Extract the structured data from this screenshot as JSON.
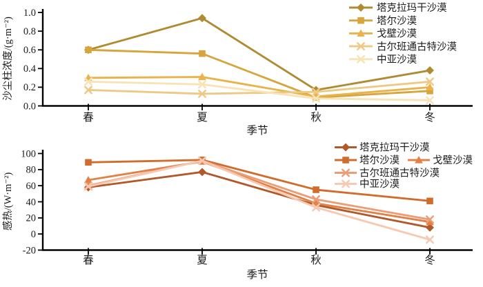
{
  "figure": {
    "background": "#ffffff",
    "text_color": "#1a1a1a",
    "axis_color": "#000000"
  },
  "chart_data": [
    {
      "type": "line",
      "categories": [
        "春",
        "夏",
        "秋",
        "冬"
      ],
      "xlabel": "季节",
      "ylabel": "沙尘柱浓度/(g·m⁻²)",
      "ylim": [
        0.0,
        1.0
      ],
      "yticks": [
        0.0,
        0.2,
        0.4,
        0.6,
        0.8,
        1.0
      ],
      "ytick_labels": [
        "0.0",
        "0.2",
        "0.4",
        "0.6",
        "0.8",
        "1.0"
      ],
      "grid": false,
      "legend_position": "top-right-inside",
      "legend_rows": [
        [
          0
        ],
        [
          1
        ],
        [
          2
        ],
        [
          3
        ],
        [
          4
        ]
      ],
      "series": [
        {
          "name": "塔克拉玛干沙漠",
          "marker": "diamond",
          "color": "#af8b32",
          "values": [
            0.6,
            0.94,
            0.17,
            0.38
          ]
        },
        {
          "name": "塔尔沙漠",
          "marker": "square",
          "color": "#d6a53e",
          "values": [
            0.6,
            0.56,
            0.09,
            0.16
          ]
        },
        {
          "name": "戈壁沙漠",
          "marker": "triangle",
          "color": "#eab24a",
          "values": [
            0.3,
            0.31,
            0.1,
            0.2
          ]
        },
        {
          "name": "古尔班通古特沙漠",
          "marker": "x",
          "color": "#edc985",
          "values": [
            0.17,
            0.13,
            0.15,
            0.26
          ]
        },
        {
          "name": "中亚沙漠",
          "marker": "x",
          "color": "#f6e4b6",
          "values": [
            0.26,
            0.23,
            0.08,
            0.06
          ]
        }
      ]
    },
    {
      "type": "line",
      "categories": [
        "春",
        "夏",
        "秋",
        "冬"
      ],
      "xlabel": "季节",
      "ylabel": "感热/(W·m⁻²)",
      "ylim": [
        -20,
        100
      ],
      "yticks": [
        -20,
        0,
        20,
        40,
        60,
        80,
        100
      ],
      "ytick_labels": [
        "-20",
        "0",
        "20",
        "40",
        "60",
        "80",
        "100"
      ],
      "grid": false,
      "legend_position": "top-right-inside",
      "legend_rows": [
        [
          0
        ],
        [
          1,
          2
        ],
        [
          3
        ],
        [
          4
        ]
      ],
      "series": [
        {
          "name": "塔克拉玛干沙漠",
          "marker": "diamond",
          "color": "#b1592b",
          "values": [
            58,
            77,
            36,
            8
          ]
        },
        {
          "name": "塔尔沙漠",
          "marker": "square",
          "color": "#d06d2d",
          "values": [
            89,
            92,
            55,
            41
          ]
        },
        {
          "name": "戈壁沙漠",
          "marker": "triangle",
          "color": "#e18147",
          "values": [
            67,
            90,
            38,
            15
          ]
        },
        {
          "name": "古尔班通古特沙漠",
          "marker": "x",
          "color": "#eb9d77",
          "values": [
            60,
            91,
            43,
            18
          ]
        },
        {
          "name": "中亚沙漠",
          "marker": "x",
          "color": "#f6c9b2",
          "values": [
            59,
            91,
            33,
            -7
          ]
        }
      ]
    }
  ]
}
